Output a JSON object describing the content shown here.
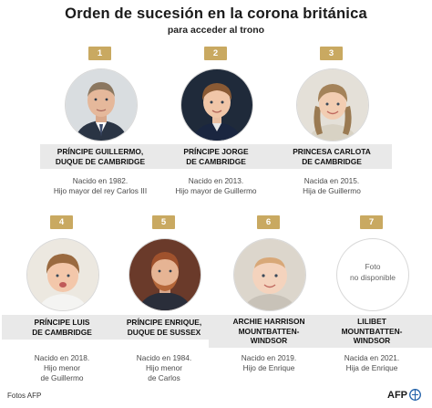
{
  "header": {
    "title": "Orden de sucesión en la corona británica",
    "subtitle": "para acceder al trono"
  },
  "people": [
    {
      "rank": "1",
      "name_line1": "PRÍNCIPE GUILLERMO,",
      "name_line2": "DUQUE DE CAMBRIDGE",
      "info_line1": "Nacido en 1982.",
      "info_line2": "Hijo mayor del rey Carlos III",
      "photo": "photo-prince-william"
    },
    {
      "rank": "2",
      "name_line1": "PRÍNCIPE JORGE",
      "name_line2": "DE CAMBRIDGE",
      "info_line1": "Nacido en 2013.",
      "info_line2": "Hijo mayor de Guillermo",
      "photo": "photo-prince-george"
    },
    {
      "rank": "3",
      "name_line1": "PRINCESA CARLOTA",
      "name_line2": "DE CAMBRIDGE",
      "info_line1": "Nacida en 2015.",
      "info_line2": "Hija de Guillermo",
      "photo": "photo-princess-charlotte"
    },
    {
      "rank": "4",
      "name_line1": "PRÍNCIPE LUIS",
      "name_line2": "DE CAMBRIDGE",
      "info_line1": "Nacido en 2018.",
      "info_line2": "Hijo menor",
      "info_line3": "de Guillermo",
      "photo": "photo-prince-louis"
    },
    {
      "rank": "5",
      "name_line1": "PRÍNCIPE ENRIQUE,",
      "name_line2": "DUQUE DE SUSSEX",
      "info_line1": "Nacido en 1984.",
      "info_line2": "Hijo menor",
      "info_line3": "de Carlos",
      "photo": "photo-prince-harry"
    },
    {
      "rank": "6",
      "name_line1": "ARCHIE HARRISON",
      "name_line2": "MOUNTBATTEN-",
      "name_line3": "WINDSOR",
      "info_line1": "Nacido en 2019.",
      "info_line2": "Hijo de Enrique",
      "photo": "photo-archie"
    },
    {
      "rank": "7",
      "name_line1": "LILIBET",
      "name_line2": "MOUNTBATTEN-",
      "name_line3": "WINDSOR",
      "info_line1": "Nacida en 2021.",
      "info_line2": "Hija de Enrique",
      "photo": "photo-placeholder",
      "no_photo_line1": "Foto",
      "no_photo_line2": "no disponible"
    }
  ],
  "footer": {
    "credit": "Fotos AFP",
    "logo_text": "AFP"
  },
  "colors": {
    "badge": "#c9a961",
    "name_box": "#e9e9e9",
    "text": "#4a4a4a"
  }
}
